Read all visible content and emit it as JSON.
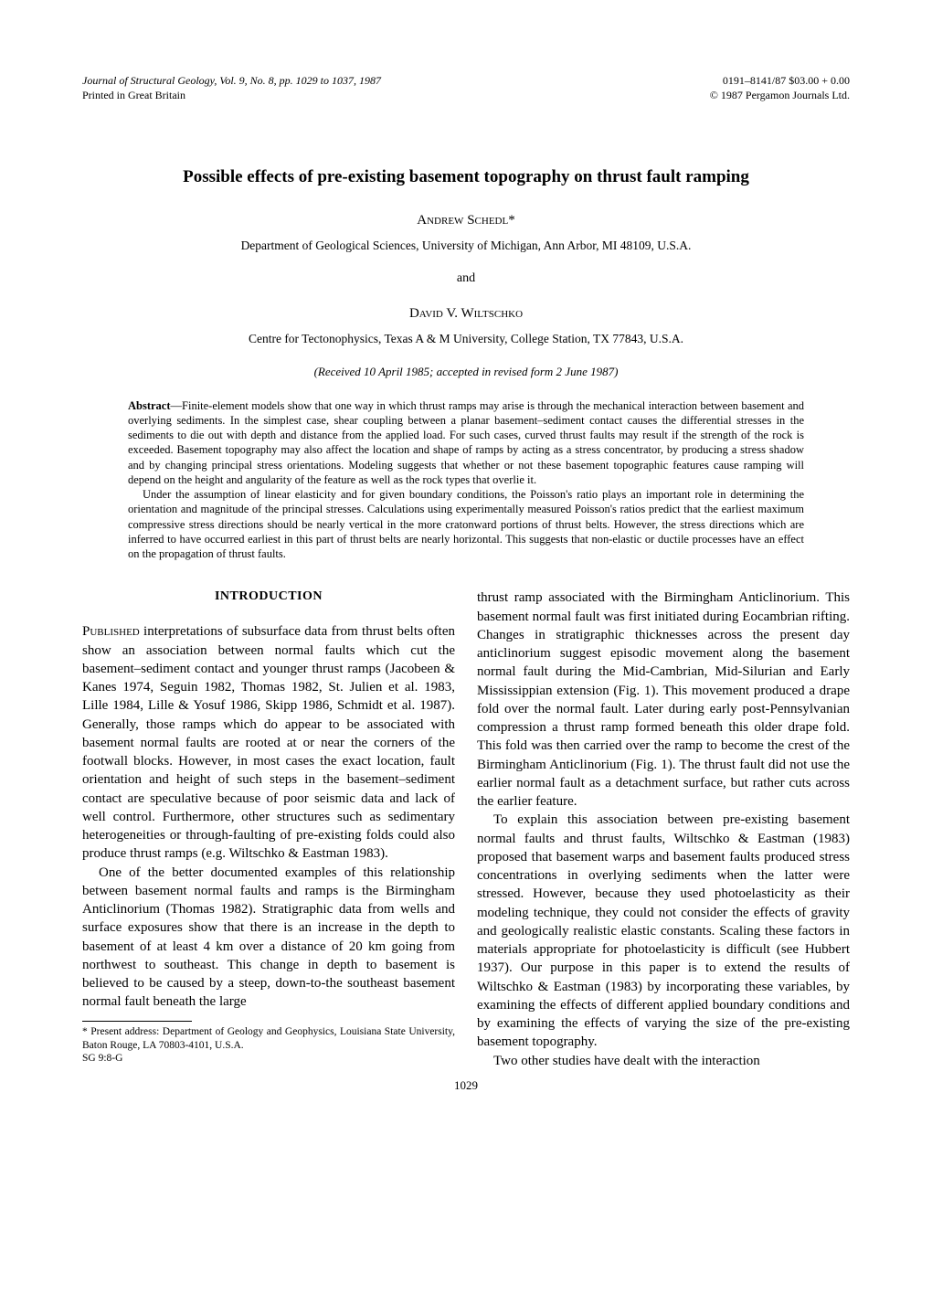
{
  "header": {
    "journal_line": "Journal of Structural Geology, Vol. 9, No. 8, pp. 1029 to 1037, 1987",
    "printed_line": "Printed in Great Britain",
    "issn_price": "0191–8141/87 $03.00 + 0.00",
    "copyright": "© 1987 Pergamon Journals Ltd."
  },
  "title": "Possible effects of pre-existing basement topography on thrust fault ramping",
  "authors": {
    "author1": "Andrew Schedl*",
    "affiliation1": "Department of Geological Sciences, University of Michigan, Ann Arbor, MI 48109, U.S.A.",
    "and_text": "and",
    "author2": "David V. Wiltschko",
    "affiliation2": "Centre for Tectonophysics, Texas A & M University, College Station, TX 77843, U.S.A.",
    "received": "(Received 10 April 1985; accepted in revised form 2 June 1987)"
  },
  "abstract": {
    "label": "Abstract",
    "para1": "—Finite-element models show that one way in which thrust ramps may arise is through the mechanical interaction between basement and overlying sediments. In the simplest case, shear coupling between a planar basement–sediment contact causes the differential stresses in the sediments to die out with depth and distance from the applied load. For such cases, curved thrust faults may result if the strength of the rock is exceeded. Basement topography may also affect the location and shape of ramps by acting as a stress concentrator, by producing a stress shadow and by changing principal stress orientations. Modeling suggests that whether or not these basement topographic features cause ramping will depend on the height and angularity of the feature as well as the rock types that overlie it.",
    "para2": "Under the assumption of linear elasticity and for given boundary conditions, the Poisson's ratio plays an important role in determining the orientation and magnitude of the principal stresses. Calculations using experimentally measured Poisson's ratios predict that the earliest maximum compressive stress directions should be nearly vertical in the more cratonward portions of thrust belts. However, the stress directions which are inferred to have occurred earliest in this part of thrust belts are nearly horizontal. This suggests that non-elastic or ductile processes have an effect on the propagation of thrust faults."
  },
  "body": {
    "section_heading": "INTRODUCTION",
    "col1": {
      "p1_start": "Published",
      "p1_rest": " interpretations of subsurface data from thrust belts often show an association between normal faults which cut the basement–sediment contact and younger thrust ramps (Jacobeen & Kanes 1974, Seguin 1982, Thomas 1982, St. Julien et al. 1983, Lille 1984, Lille & Yosuf 1986, Skipp 1986, Schmidt et al. 1987). Generally, those ramps which do appear to be associated with basement normal faults are rooted at or near the corners of the footwall blocks. However, in most cases the exact location, fault orientation and height of such steps in the basement–sediment contact are speculative because of poor seismic data and lack of well control. Furthermore, other structures such as sedimentary heterogeneities or through-faulting of pre-existing folds could also produce thrust ramps (e.g. Wiltschko & Eastman 1983).",
      "p2": "One of the better documented examples of this relationship between basement normal faults and ramps is the Birmingham Anticlinorium (Thomas 1982). Stratigraphic data from wells and surface exposures show that there is an increase in the depth to basement of at least 4 km over a distance of 20 km going from northwest to southeast. This change in depth to basement is believed to be caused by a steep, down-to-the southeast basement normal fault beneath the large"
    },
    "col2": {
      "p1": "thrust ramp associated with the Birmingham Anticlinorium. This basement normal fault was first initiated during Eocambrian rifting. Changes in stratigraphic thicknesses across the present day anticlinorium suggest episodic movement along the basement normal fault during the Mid-Cambrian, Mid-Silurian and Early Mississippian extension (Fig. 1). This movement produced a drape fold over the normal fault. Later during early post-Pennsylvanian compression a thrust ramp formed beneath this older drape fold. This fold was then carried over the ramp to become the crest of the Birmingham Anticlinorium (Fig. 1). The thrust fault did not use the earlier normal fault as a detachment surface, but rather cuts across the earlier feature.",
      "p2": "To explain this association between pre-existing basement normal faults and thrust faults, Wiltschko & Eastman (1983) proposed that basement warps and basement faults produced stress concentrations in overlying sediments when the latter were stressed. However, because they used photoelasticity as their modeling technique, they could not consider the effects of gravity and geologically realistic elastic constants. Scaling these factors in materials appropriate for photoelasticity is difficult (see Hubbert 1937). Our purpose in this paper is to extend the results of Wiltschko & Eastman (1983) by incorporating these variables, by examining the effects of different applied boundary conditions and by examining the effects of varying the size of the pre-existing basement topography.",
      "p3": "Two other studies have dealt with the interaction"
    }
  },
  "footnote": {
    "text": "* Present address: Department of Geology and Geophysics, Louisiana State University, Baton Rouge, LA 70803-4101, U.S.A.",
    "sig": "SG 9:8-G"
  },
  "page_number": "1029"
}
